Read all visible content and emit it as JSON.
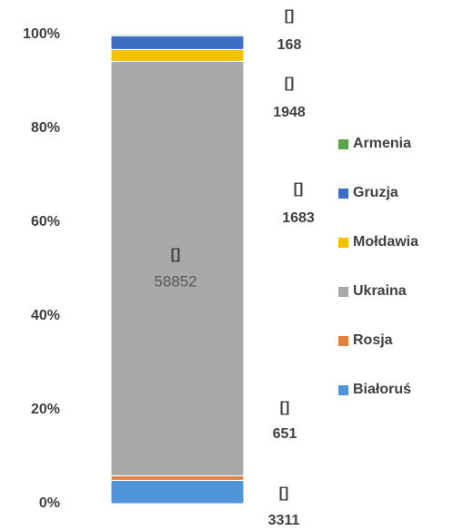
{
  "chart_data": {
    "type": "stacked_bar_100",
    "categories": [
      null
    ],
    "series": [
      {
        "name": "Białoruś",
        "color": "#4f93d8",
        "values": [
          3311
        ],
        "label_text": "[]"
      },
      {
        "name": "Rosja",
        "color": "#e0803c",
        "values": [
          651
        ],
        "label_text": "[]"
      },
      {
        "name": "Ukraina",
        "color": "#a9a9a9",
        "values": [
          58852
        ],
        "label_text": "[]"
      },
      {
        "name": "Mołdawia",
        "color": "#f2c200",
        "values": [
          1683
        ],
        "label_text": "[]"
      },
      {
        "name": "Gruzja",
        "color": "#3b6fc4",
        "values": [
          1948
        ],
        "label_text": "[]"
      },
      {
        "name": "Armenia",
        "color": "#5ea44c",
        "values": [
          168
        ],
        "label_text": "[]"
      }
    ],
    "ylim": [
      0,
      100
    ],
    "yticks": [
      {
        "value": 0,
        "label": "0%"
      },
      {
        "value": 20,
        "label": "20%"
      },
      {
        "value": 40,
        "label": "40%"
      },
      {
        "value": 60,
        "label": "60%"
      },
      {
        "value": 80,
        "label": "80%"
      },
      {
        "value": 100,
        "label": "100%"
      }
    ],
    "legend": "right"
  }
}
